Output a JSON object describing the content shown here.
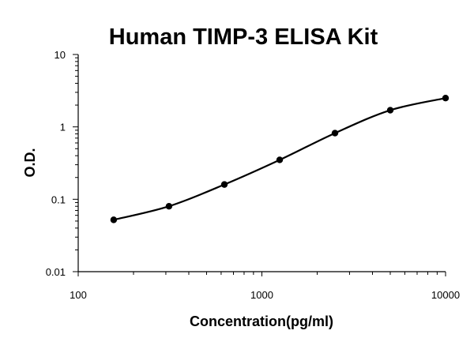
{
  "chart_data": {
    "type": "line",
    "title": "Human TIMP-3 ELISA Kit",
    "xlabel": "Concentration(pg/ml)",
    "ylabel": "O.D.",
    "x_scale": "log",
    "y_scale": "log",
    "xlim": [
      100,
      10000
    ],
    "ylim": [
      0.01,
      10
    ],
    "x_ticks": [
      "100",
      "1000",
      "10000"
    ],
    "y_ticks": [
      "0.01",
      "0.1",
      "1",
      "10"
    ],
    "grid": false,
    "legend": "none",
    "line_color": "#000000",
    "series": [
      {
        "x": [
          156,
          312,
          625,
          1250,
          2500,
          5000,
          10000
        ],
        "y": [
          0.052,
          0.08,
          0.16,
          0.35,
          0.82,
          1.7,
          2.5
        ]
      }
    ]
  }
}
